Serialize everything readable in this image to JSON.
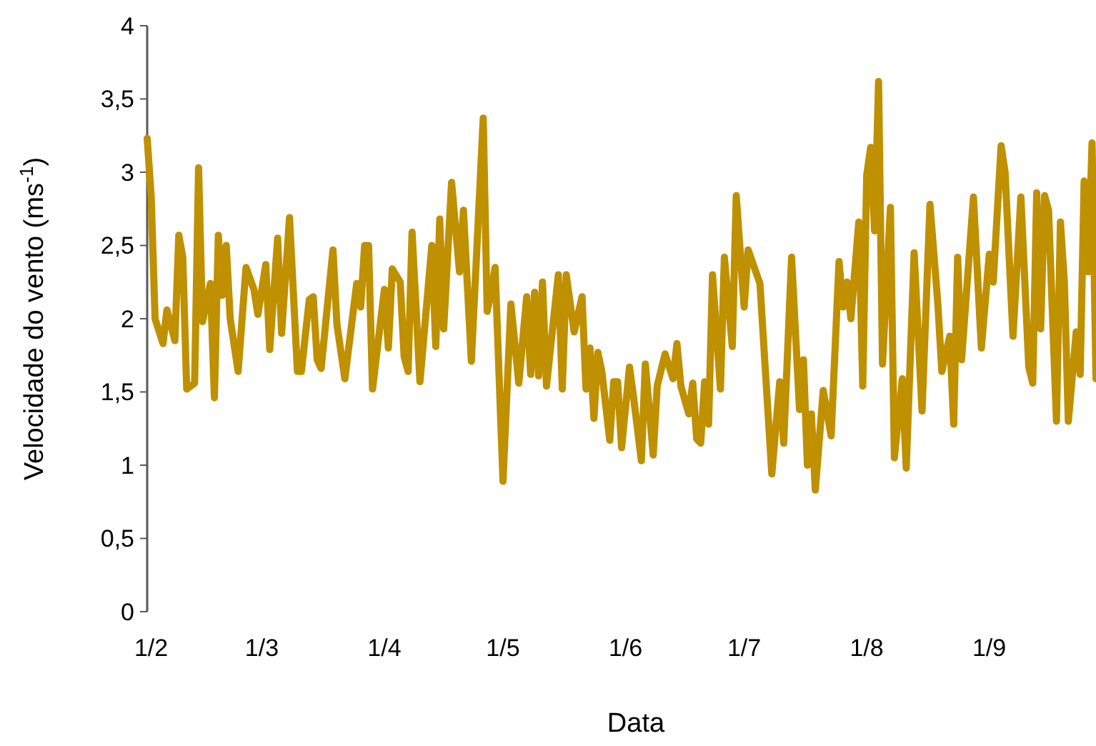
{
  "chart_data": {
    "type": "line",
    "xlabel": "Data",
    "ylabel": "Velocidade do vento (ms$^{-1}$)",
    "xlim": [
      "--01-31",
      "--09-28"
    ],
    "xticks": [
      {
        "value": "--02-01",
        "label": "1/2"
      },
      {
        "value": "--03-01",
        "label": "1/3"
      },
      {
        "value": "--04-01",
        "label": "1/4"
      },
      {
        "value": "--05-01",
        "label": "1/5"
      },
      {
        "value": "--06-01",
        "label": "1/6"
      },
      {
        "value": "--07-01",
        "label": "1/7"
      },
      {
        "value": "--08-01",
        "label": "1/8"
      },
      {
        "value": "--09-01",
        "label": "1/9"
      }
    ],
    "ylim": [
      0,
      4
    ],
    "yticks": [
      0,
      {
        "value": 0.5,
        "label": "0,5"
      },
      1,
      {
        "value": 1.5,
        "label": "1,5"
      },
      2,
      {
        "value": 2.5,
        "label": "2,5"
      },
      3,
      {
        "value": 3.5,
        "label": "3,5"
      },
      4
    ],
    "grid": false,
    "marker": "none",
    "line_style": "solid",
    "x": [
      "--01-31",
      "--02-01",
      "--02-02",
      "--02-04",
      "--02-05",
      "--02-07",
      "--02-08",
      "--02-09",
      "--02-10",
      "--02-12",
      "--02-13",
      "--02-14",
      "--02-16",
      "--02-17",
      "--02-18",
      "--02-19",
      "--02-20",
      "--02-21",
      "--02-23",
      "--02-25",
      "--02-27",
      "--02-28",
      "--03-02",
      "--03-03",
      "--03-05",
      "--03-06",
      "--03-08",
      "--03-10",
      "--03-11",
      "--03-13",
      "--03-14",
      "--03-15",
      "--03-16",
      "--03-19",
      "--03-20",
      "--03-22",
      "--03-25",
      "--03-26",
      "--03-27",
      "--03-28",
      "--03-29",
      "--04-01",
      "--04-02",
      "--04-03",
      "--04-05",
      "--04-06",
      "--04-07",
      "--04-08",
      "--04-10",
      "--04-13",
      "--04-14",
      "--04-15",
      "--04-16",
      "--04-18",
      "--04-20",
      "--04-21",
      "--04-23",
      "--04-26",
      "--04-27",
      "--04-28",
      "--04-29",
      "--05-01",
      "--05-03",
      "--05-05",
      "--05-07",
      "--05-08",
      "--05-09",
      "--05-10",
      "--05-11",
      "--05-12",
      "--05-15",
      "--05-16",
      "--05-17",
      "--05-19",
      "--05-21",
      "--05-22",
      "--05-23",
      "--05-24",
      "--05-25",
      "--05-26",
      "--05-28",
      "--05-29",
      "--05-30",
      "--05-31",
      "--06-02",
      "--06-03",
      "--06-05",
      "--06-06",
      "--06-08",
      "--06-09",
      "--06-11",
      "--06-13",
      "--06-14",
      "--06-15",
      "--06-17",
      "--06-18",
      "--06-19",
      "--06-20",
      "--06-21",
      "--06-22",
      "--06-23",
      "--06-25",
      "--06-26",
      "--06-28",
      "--06-29",
      "--07-01",
      "--07-02",
      "--07-05",
      "--07-08",
      "--07-10",
      "--07-11",
      "--07-13",
      "--07-15",
      "--07-16",
      "--07-17",
      "--07-18",
      "--07-19",
      "--07-21",
      "--07-23",
      "--07-25",
      "--07-26",
      "--07-27",
      "--07-28",
      "--07-30",
      "--07-31",
      "--08-01",
      "--08-02",
      "--08-03",
      "--08-04",
      "--08-05",
      "--08-07",
      "--08-08",
      "--08-10",
      "--08-11",
      "--08-13",
      "--08-15",
      "--08-17",
      "--08-19",
      "--08-20",
      "--08-22",
      "--08-23",
      "--08-24",
      "--08-25",
      "--08-28",
      "--08-30",
      "--09-01",
      "--09-02",
      "--09-04",
      "--09-05",
      "--09-07",
      "--09-09",
      "--09-11",
      "--09-12",
      "--09-13",
      "--09-14",
      "--09-15",
      "--09-16",
      "--09-18",
      "--09-19",
      "--09-20",
      "--09-21",
      "--09-23",
      "--09-24",
      "--09-25",
      "--09-26",
      "--09-27",
      "--09-28"
    ],
    "series": [
      {
        "color": "#bf9000",
        "values": [
          3.23,
          2.84,
          2.0,
          1.83,
          2.06,
          1.85,
          2.57,
          2.42,
          1.52,
          1.56,
          3.03,
          1.98,
          2.24,
          1.46,
          2.57,
          2.16,
          2.5,
          2.0,
          1.64,
          2.35,
          2.2,
          2.03,
          2.37,
          1.79,
          2.55,
          1.9,
          2.69,
          1.64,
          1.64,
          2.13,
          2.15,
          1.72,
          1.66,
          2.47,
          1.96,
          1.59,
          2.24,
          2.08,
          2.5,
          2.5,
          1.52,
          2.2,
          1.8,
          2.34,
          2.25,
          1.74,
          1.64,
          2.59,
          1.57,
          2.5,
          1.81,
          2.68,
          1.93,
          2.93,
          2.32,
          2.74,
          1.71,
          3.37,
          2.05,
          2.18,
          2.35,
          0.89,
          2.1,
          1.56,
          2.15,
          1.62,
          2.18,
          1.61,
          2.25,
          1.54,
          2.3,
          1.52,
          2.3,
          1.91,
          2.15,
          1.52,
          1.8,
          1.32,
          1.77,
          1.64,
          1.17,
          1.57,
          1.57,
          1.12,
          1.67,
          1.47,
          1.03,
          1.69,
          1.07,
          1.54,
          1.76,
          1.59,
          1.83,
          1.54,
          1.35,
          1.56,
          1.18,
          1.15,
          1.57,
          1.28,
          2.3,
          1.52,
          2.42,
          1.81,
          2.84,
          2.08,
          2.47,
          2.24,
          0.94,
          1.57,
          1.15,
          2.42,
          1.38,
          1.72,
          1.0,
          1.35,
          0.83,
          1.51,
          1.2,
          2.39,
          2.08,
          2.25,
          2.0,
          2.66,
          1.54,
          2.98,
          3.17,
          2.6,
          3.62,
          1.69,
          2.76,
          1.05,
          1.59,
          0.98,
          2.45,
          1.37,
          2.78,
          2.1,
          1.64,
          1.88,
          1.28,
          2.42,
          1.72,
          2.83,
          1.8,
          2.44,
          2.25,
          3.18,
          3.0,
          1.88,
          2.83,
          1.67,
          1.56,
          2.86,
          1.93,
          2.84,
          2.74,
          1.3,
          2.66,
          2.25,
          1.3,
          1.91,
          1.62,
          2.94,
          2.32,
          3.2,
          1.59
        ]
      }
    ]
  }
}
